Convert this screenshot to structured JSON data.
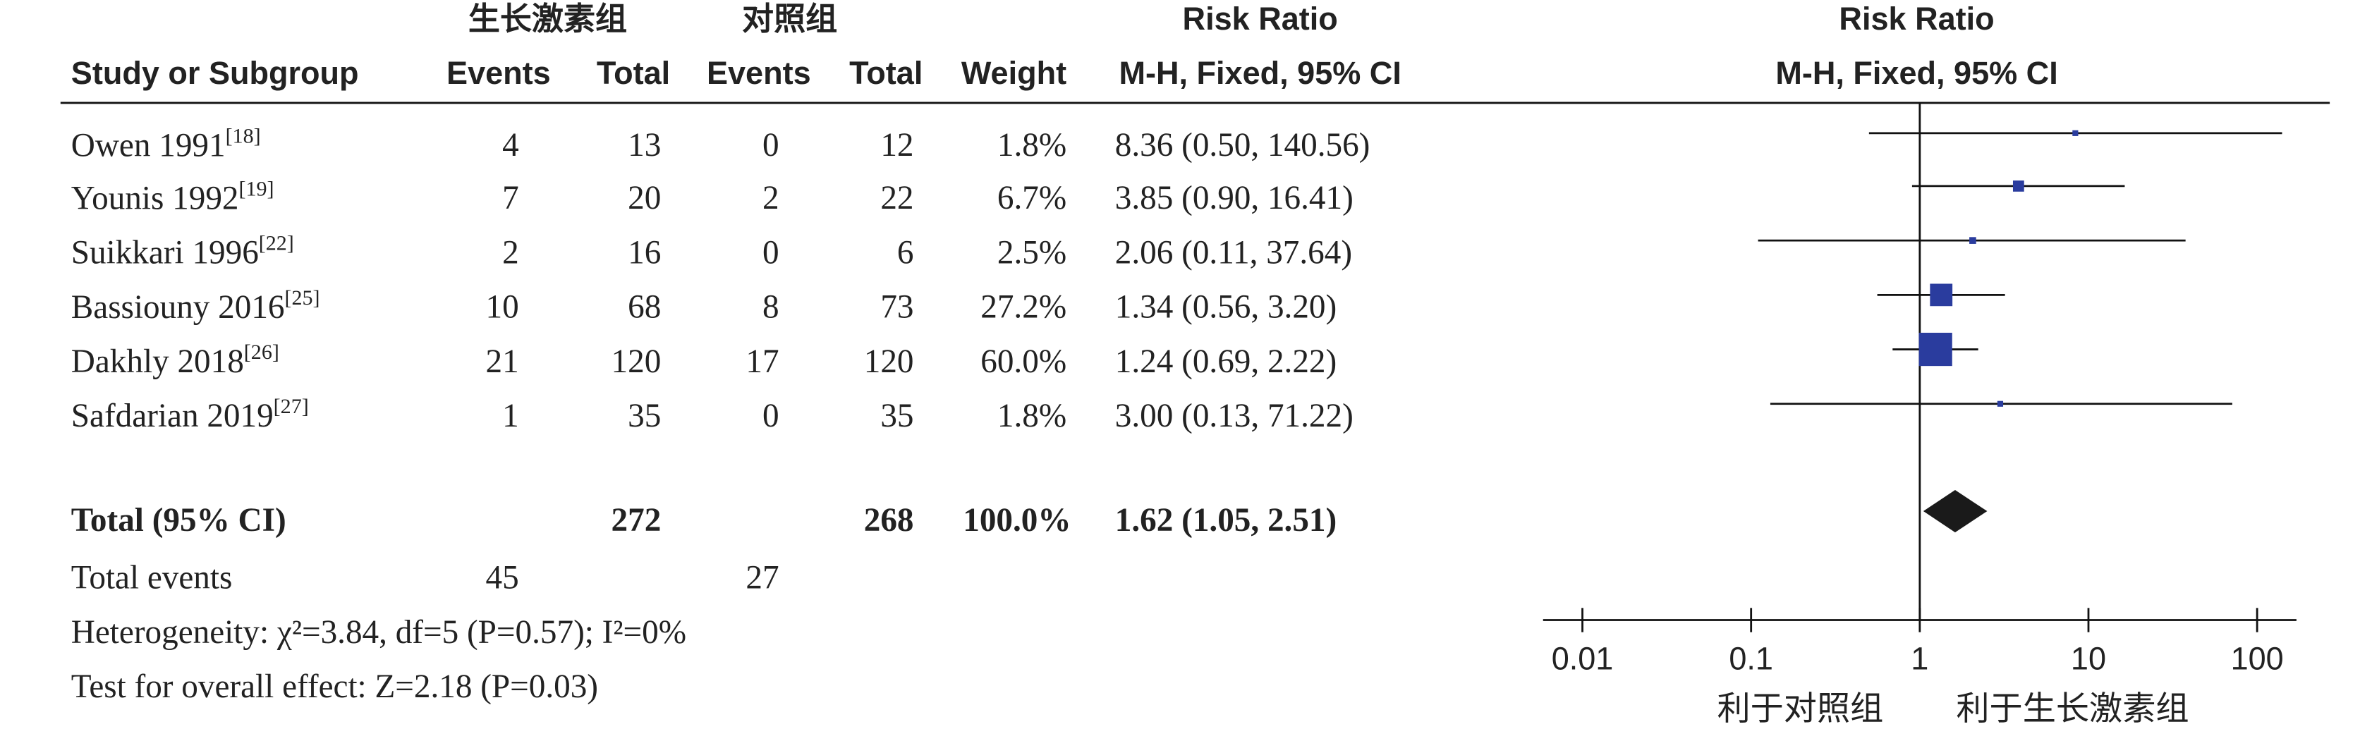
{
  "chart_data": {
    "type": "forest",
    "group_headers": [
      "生长激素组",
      "对照组"
    ],
    "plot_header": "Risk Ratio",
    "table_header": "Risk Ratio",
    "columns": [
      "Study or Subgroup",
      "Events",
      "Total",
      "Events",
      "Total",
      "Weight",
      "M-H, Fixed, 95% CI"
    ],
    "plot_subheader": "M-H, Fixed, 95% CI",
    "studies": [
      "Owen 1991",
      "Younis 1992",
      "Suikkari 1996",
      "Bassiouny 2016",
      "Dakhly 2018",
      "Safdarian 2019"
    ],
    "refs": [
      "[18]",
      "[19]",
      "[22]",
      "[25]",
      "[26]",
      "[27]"
    ],
    "events_treat": [
      4,
      7,
      2,
      10,
      21,
      1
    ],
    "total_treat": [
      13,
      20,
      16,
      68,
      120,
      35
    ],
    "events_ctrl": [
      0,
      2,
      0,
      8,
      17,
      0
    ],
    "total_ctrl": [
      12,
      22,
      6,
      73,
      120,
      35
    ],
    "weights": [
      1.8,
      6.7,
      2.5,
      27.2,
      60.0,
      1.8
    ],
    "weight_labels": [
      "1.8%",
      "6.7%",
      "2.5%",
      "27.2%",
      "60.0%",
      "1.8%"
    ],
    "rr": [
      8.36,
      3.85,
      2.06,
      1.34,
      1.24,
      3.0
    ],
    "ci_low": [
      0.5,
      0.9,
      0.11,
      0.56,
      0.69,
      0.13
    ],
    "ci_high": [
      140.56,
      16.41,
      37.64,
      3.2,
      2.22,
      71.22
    ],
    "rr_labels": [
      "8.36 (0.50, 140.56)",
      "3.85 (0.90, 16.41)",
      "2.06 (0.11, 37.64)",
      "1.34 (0.56, 3.20)",
      "1.24 (0.69, 2.22)",
      "3.00 (0.13, 71.22)"
    ],
    "total": {
      "label": "Total (95% CI)",
      "total_treat": 272,
      "total_ctrl": 268,
      "weight": 100.0,
      "weight_label": "100.0%",
      "rr": 1.62,
      "ci_low": 1.05,
      "ci_high": 2.51,
      "rr_label": "1.62 (1.05, 2.51)"
    },
    "total_events": {
      "label": "Total events",
      "treat": 45,
      "ctrl": 27
    },
    "heterogeneity": "Heterogeneity: χ²=3.84, df=5 (P=0.57); I²=0%",
    "overall_effect": "Test for overall effect: Z=2.18 (P=0.03)",
    "xscale": "log",
    "xlim": [
      0.01,
      100
    ],
    "xticks": [
      0.01,
      0.1,
      1,
      10,
      100
    ],
    "axis_labels": [
      "利于对照组",
      "利于生长激素组"
    ],
    "square_color": "#2a3c9e",
    "diamond_color": "#1a1a1a"
  }
}
